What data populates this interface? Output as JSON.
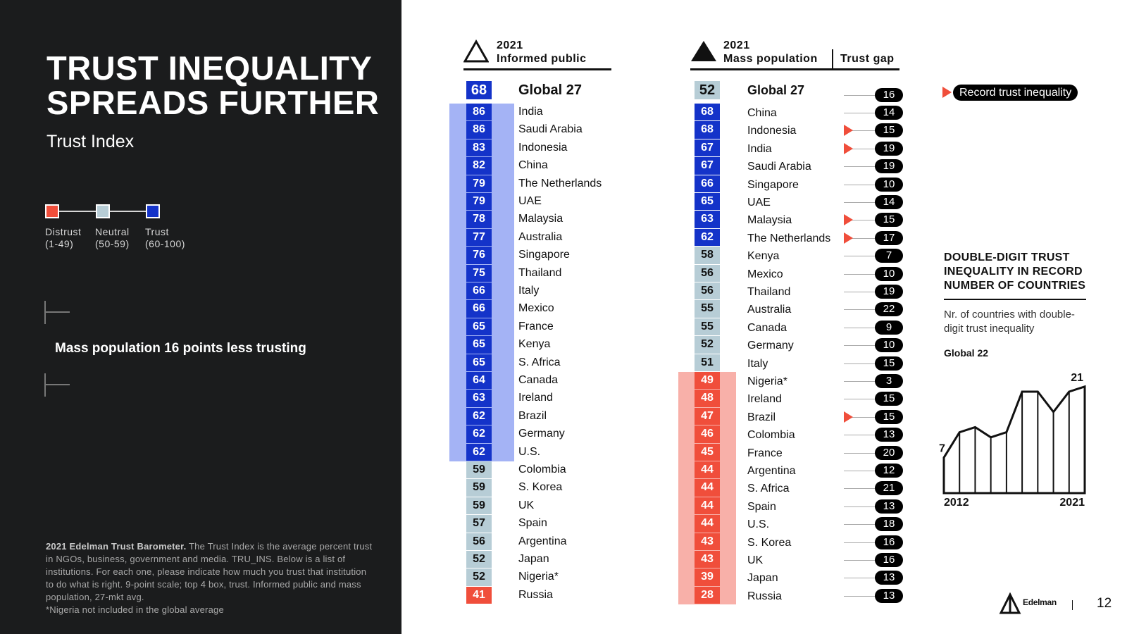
{
  "title_lines": [
    "TRUST INEQUALITY",
    "SPREADS FURTHER"
  ],
  "subtitle": "Trust Index",
  "legend": [
    {
      "label": "Distrust",
      "range": "(1-49)",
      "color": "#f04e3b"
    },
    {
      "label": "Neutral",
      "range": "(50-59)",
      "color": "#b7cdd6"
    },
    {
      "label": "Trust",
      "range": "(60-100)",
      "color": "#1433c9"
    }
  ],
  "callout": "Mass population 16 points less trusting",
  "footnote": {
    "bold": "2021 Edelman Trust Barometer.",
    "text": "The Trust Index is the average percent trust in NGOs, business, government and media. TRU_INS. Below is a list of institutions. For each one, please indicate how much you trust that institution to do what is right. 9-point scale; top 4 box, trust. Informed public and mass population, 27-mkt avg.",
    "note": "*Nigeria not included in the global average"
  },
  "informed_header": {
    "year": "2021",
    "label": "Informed public"
  },
  "mass_header": {
    "year": "2021",
    "label": "Mass population"
  },
  "gap_header": "Trust gap",
  "record_label": "Record trust inequality",
  "side": {
    "title": "DOUBLE-DIGIT TRUST INEQUALITY IN RECORD NUMBER OF COUNTRIES",
    "subtitle": "Nr. of countries with double-digit trust inequality",
    "global_label": "Global 22"
  },
  "brand": "Edelman",
  "page_number": "12",
  "colors": {
    "distrust": "#f04e3b",
    "neutral": "#b7cdd6",
    "trust": "#1433c9",
    "band_trust": "#a4b3f5",
    "band_distrust": "#f8b0a9",
    "record_flag": "#f04e3b",
    "dark_bg": "#1b1c1d"
  },
  "chart_data": [
    {
      "type": "table",
      "title": "2021 Informed public",
      "global": {
        "name": "Global 27",
        "value": 68
      },
      "rows": [
        {
          "country": "India",
          "value": 86
        },
        {
          "country": "Saudi Arabia",
          "value": 86
        },
        {
          "country": "Indonesia",
          "value": 83
        },
        {
          "country": "China",
          "value": 82
        },
        {
          "country": "The Netherlands",
          "value": 79
        },
        {
          "country": "UAE",
          "value": 79
        },
        {
          "country": "Malaysia",
          "value": 78
        },
        {
          "country": "Australia",
          "value": 77
        },
        {
          "country": "Singapore",
          "value": 76
        },
        {
          "country": "Thailand",
          "value": 75
        },
        {
          "country": "Italy",
          "value": 66
        },
        {
          "country": "Mexico",
          "value": 66
        },
        {
          "country": "France",
          "value": 65
        },
        {
          "country": "Kenya",
          "value": 65
        },
        {
          "country": "S. Africa",
          "value": 65
        },
        {
          "country": "Canada",
          "value": 64
        },
        {
          "country": "Ireland",
          "value": 63
        },
        {
          "country": "Brazil",
          "value": 62
        },
        {
          "country": "Germany",
          "value": 62
        },
        {
          "country": "U.S.",
          "value": 62
        },
        {
          "country": "Colombia",
          "value": 59
        },
        {
          "country": "S. Korea",
          "value": 59
        },
        {
          "country": "UK",
          "value": 59
        },
        {
          "country": "Spain",
          "value": 57
        },
        {
          "country": "Argentina",
          "value": 56
        },
        {
          "country": "Japan",
          "value": 52
        },
        {
          "country": "Nigeria*",
          "value": 52
        },
        {
          "country": "Russia",
          "value": 41
        }
      ]
    },
    {
      "type": "table",
      "title": "2021 Mass population",
      "global": {
        "name": "Global 27",
        "value": 52,
        "gap": 16
      },
      "rows": [
        {
          "country": "China",
          "value": 68,
          "gap": 14,
          "record": false
        },
        {
          "country": "Indonesia",
          "value": 68,
          "gap": 15,
          "record": true
        },
        {
          "country": "India",
          "value": 67,
          "gap": 19,
          "record": true
        },
        {
          "country": "Saudi Arabia",
          "value": 67,
          "gap": 19,
          "record": false
        },
        {
          "country": "Singapore",
          "value": 66,
          "gap": 10,
          "record": false
        },
        {
          "country": "UAE",
          "value": 65,
          "gap": 14,
          "record": false
        },
        {
          "country": "Malaysia",
          "value": 63,
          "gap": 15,
          "record": true
        },
        {
          "country": "The Netherlands",
          "value": 62,
          "gap": 17,
          "record": true
        },
        {
          "country": "Kenya",
          "value": 58,
          "gap": 7,
          "record": false
        },
        {
          "country": "Mexico",
          "value": 56,
          "gap": 10,
          "record": false
        },
        {
          "country": "Thailand",
          "value": 56,
          "gap": 19,
          "record": false
        },
        {
          "country": "Australia",
          "value": 55,
          "gap": 22,
          "record": false
        },
        {
          "country": "Canada",
          "value": 55,
          "gap": 9,
          "record": false
        },
        {
          "country": "Germany",
          "value": 52,
          "gap": 10,
          "record": false
        },
        {
          "country": "Italy",
          "value": 51,
          "gap": 15,
          "record": false
        },
        {
          "country": "Nigeria*",
          "value": 49,
          "gap": 3,
          "record": false
        },
        {
          "country": "Ireland",
          "value": 48,
          "gap": 15,
          "record": false
        },
        {
          "country": "Brazil",
          "value": 47,
          "gap": 15,
          "record": true
        },
        {
          "country": "Colombia",
          "value": 46,
          "gap": 13,
          "record": false
        },
        {
          "country": "France",
          "value": 45,
          "gap": 20,
          "record": false
        },
        {
          "country": "Argentina",
          "value": 44,
          "gap": 12,
          "record": false
        },
        {
          "country": "S. Africa",
          "value": 44,
          "gap": 21,
          "record": false
        },
        {
          "country": "Spain",
          "value": 44,
          "gap": 13,
          "record": false
        },
        {
          "country": "U.S.",
          "value": 44,
          "gap": 18,
          "record": false
        },
        {
          "country": "S. Korea",
          "value": 43,
          "gap": 16,
          "record": false
        },
        {
          "country": "UK",
          "value": 43,
          "gap": 16,
          "record": false
        },
        {
          "country": "Japan",
          "value": 39,
          "gap": 13,
          "record": false
        },
        {
          "country": "Russia",
          "value": 28,
          "gap": 13,
          "record": false
        }
      ]
    },
    {
      "type": "area",
      "title": "DOUBLE-DIGIT TRUST INEQUALITY IN RECORD NUMBER OF COUNTRIES",
      "x": [
        2012,
        2013,
        2014,
        2015,
        2016,
        2017,
        2018,
        2019,
        2020,
        2021
      ],
      "y": [
        7,
        12,
        13,
        11,
        12,
        20,
        20,
        16,
        20,
        21
      ],
      "labels": {
        "start": "7",
        "end": "21"
      },
      "xlabels": [
        "2012",
        "2021"
      ]
    }
  ]
}
